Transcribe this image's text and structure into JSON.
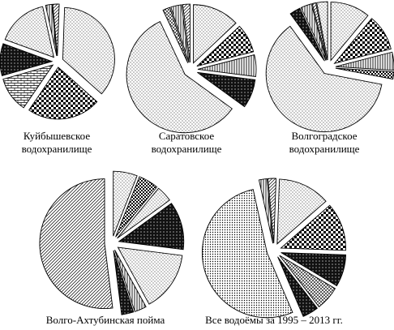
{
  "chart_data": [
    {
      "type": "pie",
      "caption_line1": "Куйбышевское",
      "caption_line2": "водохранилище",
      "values": [
        36,
        23,
        11,
        10,
        16,
        2,
        2
      ]
    },
    {
      "type": "pie",
      "caption_line1": "Саратовское",
      "caption_line2": "водохранилище",
      "values": [
        13,
        8,
        6,
        8,
        58,
        2,
        3,
        2
      ]
    },
    {
      "type": "pie",
      "caption_line1": "Волгоградское",
      "caption_line2": "водохранилище",
      "values": [
        11,
        10,
        5,
        2,
        62,
        3,
        3,
        1,
        3
      ]
    },
    {
      "type": "pie",
      "caption_line1": "Волго-Ахтубинская пойма",
      "caption_line2": "",
      "values": [
        6,
        5,
        4,
        12,
        15,
        3,
        3,
        52
      ]
    },
    {
      "type": "pie",
      "caption_line1": "Все водоёмы за 1995 – 2013 гг.",
      "caption_line2": "",
      "values": [
        13,
        12,
        8,
        6,
        4,
        53,
        2,
        2
      ]
    }
  ]
}
